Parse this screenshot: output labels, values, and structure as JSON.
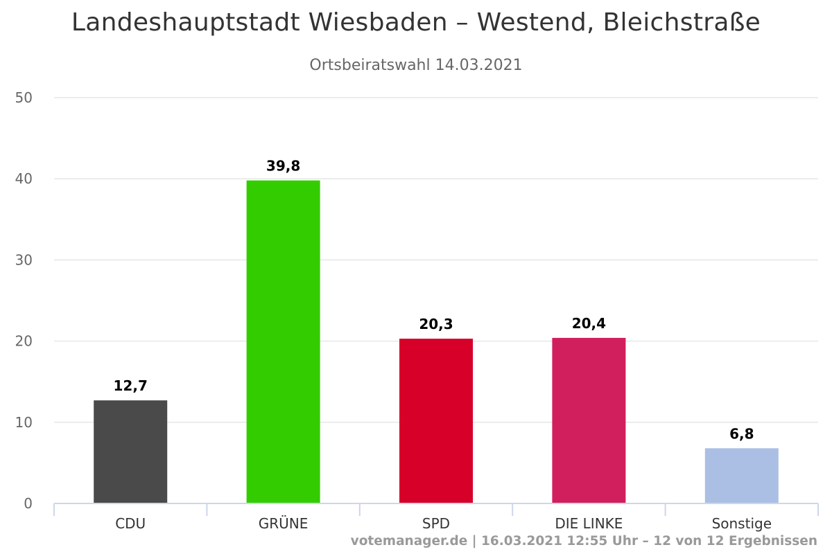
{
  "chart_data": {
    "type": "bar",
    "title": "Landeshauptstadt Wiesbaden – Westend, Bleichstraße",
    "subtitle": "Ortsbeiratswahl 14.03.2021",
    "categories": [
      "CDU",
      "GRÜNE",
      "SPD",
      "DIE LINKE",
      "Sonstige"
    ],
    "values": [
      12.7,
      39.8,
      20.3,
      20.4,
      6.8
    ],
    "value_labels": [
      "12,7",
      "39,8",
      "20,3",
      "20,4",
      "6,8"
    ],
    "colors": [
      "#4a4a4a",
      "#33cc00",
      "#d70029",
      "#d11f5d",
      "#aabfe3"
    ],
    "ylim": [
      0,
      50
    ],
    "yticks": [
      0,
      10,
      20,
      30,
      40,
      50
    ],
    "xlabel": "",
    "ylabel": "",
    "grid": true,
    "legend": "none"
  },
  "credits": "votemanager.de | 16.03.2021 12:55 Uhr – 12 von 12 Ergebnissen"
}
